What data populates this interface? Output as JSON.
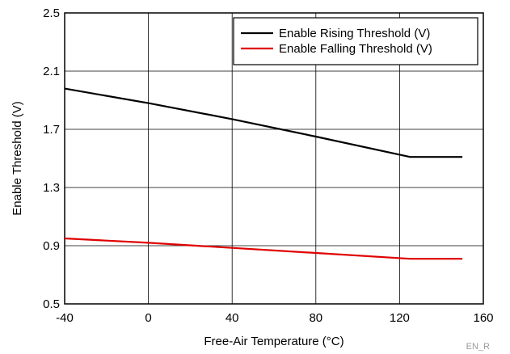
{
  "chart_data": {
    "type": "line",
    "xlabel": "Free-Air Temperature (°C)",
    "ylabel": "Enable Threshold (V)",
    "xlim": [
      -40,
      160
    ],
    "ylim": [
      0.5,
      2.5
    ],
    "xticks": [
      -40,
      0,
      40,
      80,
      120,
      160
    ],
    "xtick_labels": [
      "-40",
      "0",
      "40",
      "80",
      "120",
      "160"
    ],
    "yticks": [
      0.5,
      0.9,
      1.3,
      1.7,
      2.1,
      2.5
    ],
    "ytick_labels": [
      "0.5",
      "0.9",
      "1.3",
      "1.7",
      "2.1",
      "2.5"
    ],
    "grid": true,
    "legend_position": "top-right",
    "series": [
      {
        "name": "Enable Rising Threshold (V)",
        "color": "#000000",
        "x": [
          -40,
          0,
          40,
          80,
          125,
          150
        ],
        "y": [
          1.98,
          1.88,
          1.77,
          1.65,
          1.51,
          1.51
        ]
      },
      {
        "name": "Enable Falling Threshold (V)",
        "color": "#e00000",
        "x": [
          -40,
          0,
          40,
          80,
          125,
          150
        ],
        "y": [
          0.95,
          0.92,
          0.885,
          0.85,
          0.81,
          0.81
        ]
      }
    ],
    "footnote": "EN_R"
  }
}
